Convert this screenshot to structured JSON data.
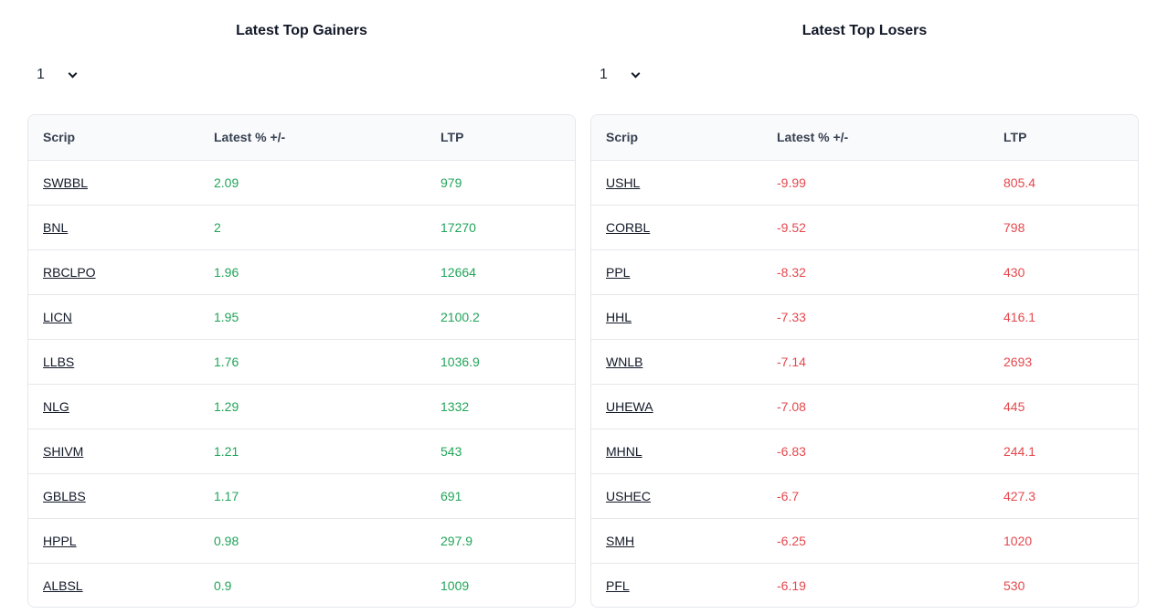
{
  "gainers": {
    "title": "Latest Top Gainers",
    "select_value": "1",
    "headers": {
      "scrip": "Scrip",
      "pct": "Latest % +/-",
      "ltp": "LTP"
    },
    "rows": [
      {
        "scrip": "SWBBL",
        "pct": "2.09",
        "ltp": "979"
      },
      {
        "scrip": "BNL",
        "pct": "2",
        "ltp": "17270"
      },
      {
        "scrip": "RBCLPO",
        "pct": "1.96",
        "ltp": "12664"
      },
      {
        "scrip": "LICN",
        "pct": "1.95",
        "ltp": "2100.2"
      },
      {
        "scrip": "LLBS",
        "pct": "1.76",
        "ltp": "1036.9"
      },
      {
        "scrip": "NLG",
        "pct": "1.29",
        "ltp": "1332"
      },
      {
        "scrip": "SHIVM",
        "pct": "1.21",
        "ltp": "543"
      },
      {
        "scrip": "GBLBS",
        "pct": "1.17",
        "ltp": "691"
      },
      {
        "scrip": "HPPL",
        "pct": "0.98",
        "ltp": "297.9"
      },
      {
        "scrip": "ALBSL",
        "pct": "0.9",
        "ltp": "1009"
      }
    ]
  },
  "losers": {
    "title": "Latest Top Losers",
    "select_value": "1",
    "headers": {
      "scrip": "Scrip",
      "pct": "Latest % +/-",
      "ltp": "LTP"
    },
    "rows": [
      {
        "scrip": "USHL",
        "pct": "-9.99",
        "ltp": "805.4"
      },
      {
        "scrip": "CORBL",
        "pct": "-9.52",
        "ltp": "798"
      },
      {
        "scrip": "PPL",
        "pct": "-8.32",
        "ltp": "430"
      },
      {
        "scrip": "HHL",
        "pct": "-7.33",
        "ltp": "416.1"
      },
      {
        "scrip": "WNLB",
        "pct": "-7.14",
        "ltp": "2693"
      },
      {
        "scrip": "UHEWA",
        "pct": "-7.08",
        "ltp": "445"
      },
      {
        "scrip": "MHNL",
        "pct": "-6.83",
        "ltp": "244.1"
      },
      {
        "scrip": "USHEC",
        "pct": "-6.7",
        "ltp": "427.3"
      },
      {
        "scrip": "SMH",
        "pct": "-6.25",
        "ltp": "1020"
      },
      {
        "scrip": "PFL",
        "pct": "-6.19",
        "ltp": "530"
      }
    ]
  },
  "colors": {
    "gain": "#22a55a",
    "loss": "#e5484d"
  }
}
